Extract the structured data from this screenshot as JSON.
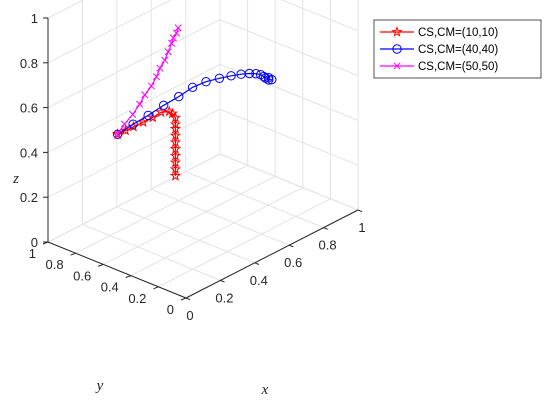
{
  "chart_data": {
    "type": "line3d",
    "xlabel": "x",
    "ylabel": "y",
    "zlabel": "z",
    "xlim": [
      0,
      1
    ],
    "ylim": [
      0,
      1
    ],
    "zlim": [
      0,
      1
    ],
    "x_ticks": [
      "0",
      "0.2",
      "0.4",
      "0.6",
      "0.8",
      "1"
    ],
    "y_ticks": [
      "0",
      "0.2",
      "0.4",
      "0.6",
      "0.8",
      "1"
    ],
    "z_ticks": [
      "0",
      "0.2",
      "0.4",
      "0.6",
      "0.8",
      "1"
    ],
    "grid": true,
    "legend_position": "top-right",
    "series": [
      {
        "name": "CS,CM=(10,10)",
        "color": "#ff0000",
        "marker": "pentagram",
        "points": [
          [
            0.42,
            0.6,
            0.23
          ],
          [
            0.42,
            0.6,
            0.26
          ],
          [
            0.42,
            0.6,
            0.29
          ],
          [
            0.42,
            0.6,
            0.32
          ],
          [
            0.42,
            0.6,
            0.35
          ],
          [
            0.42,
            0.6,
            0.38
          ],
          [
            0.42,
            0.6,
            0.41
          ],
          [
            0.42,
            0.6,
            0.44
          ],
          [
            0.42,
            0.6,
            0.46
          ],
          [
            0.42,
            0.6,
            0.49
          ],
          [
            0.41,
            0.61,
            0.51
          ],
          [
            0.4,
            0.62,
            0.52
          ],
          [
            0.36,
            0.63,
            0.53
          ],
          [
            0.32,
            0.64,
            0.52
          ],
          [
            0.28,
            0.66,
            0.51
          ],
          [
            0.24,
            0.68,
            0.5
          ],
          [
            0.21,
            0.7,
            0.49
          ],
          [
            0.18,
            0.72,
            0.48
          ]
        ]
      },
      {
        "name": "CS,CM=(40,40)",
        "color": "#0000ff",
        "marker": "circle",
        "points": [
          [
            0.18,
            0.72,
            0.48
          ],
          [
            0.27,
            0.72,
            0.49
          ],
          [
            0.35,
            0.71,
            0.5
          ],
          [
            0.44,
            0.71,
            0.51
          ],
          [
            0.52,
            0.7,
            0.52
          ],
          [
            0.6,
            0.7,
            0.53
          ],
          [
            0.67,
            0.69,
            0.53
          ],
          [
            0.74,
            0.68,
            0.52
          ],
          [
            0.8,
            0.67,
            0.51
          ],
          [
            0.85,
            0.66,
            0.5
          ],
          [
            0.89,
            0.65,
            0.49
          ],
          [
            0.92,
            0.64,
            0.48
          ],
          [
            0.94,
            0.63,
            0.47
          ],
          [
            0.95,
            0.62,
            0.46
          ],
          [
            0.96,
            0.62,
            0.45
          ],
          [
            0.97,
            0.61,
            0.45
          ],
          [
            0.97,
            0.61,
            0.44
          ],
          [
            0.98,
            0.6,
            0.44
          ]
        ]
      },
      {
        "name": "CS,CM=(50,50)",
        "color": "#ff00ff",
        "marker": "x",
        "points": [
          [
            0.18,
            0.72,
            0.48
          ],
          [
            0.22,
            0.72,
            0.51
          ],
          [
            0.26,
            0.71,
            0.54
          ],
          [
            0.3,
            0.71,
            0.57
          ],
          [
            0.33,
            0.71,
            0.6
          ],
          [
            0.36,
            0.7,
            0.63
          ],
          [
            0.39,
            0.7,
            0.66
          ],
          [
            0.41,
            0.7,
            0.69
          ],
          [
            0.43,
            0.69,
            0.72
          ],
          [
            0.45,
            0.69,
            0.75
          ],
          [
            0.47,
            0.69,
            0.78
          ],
          [
            0.48,
            0.69,
            0.8
          ],
          [
            0.49,
            0.68,
            0.82
          ],
          [
            0.5,
            0.68,
            0.84
          ]
        ]
      }
    ]
  }
}
